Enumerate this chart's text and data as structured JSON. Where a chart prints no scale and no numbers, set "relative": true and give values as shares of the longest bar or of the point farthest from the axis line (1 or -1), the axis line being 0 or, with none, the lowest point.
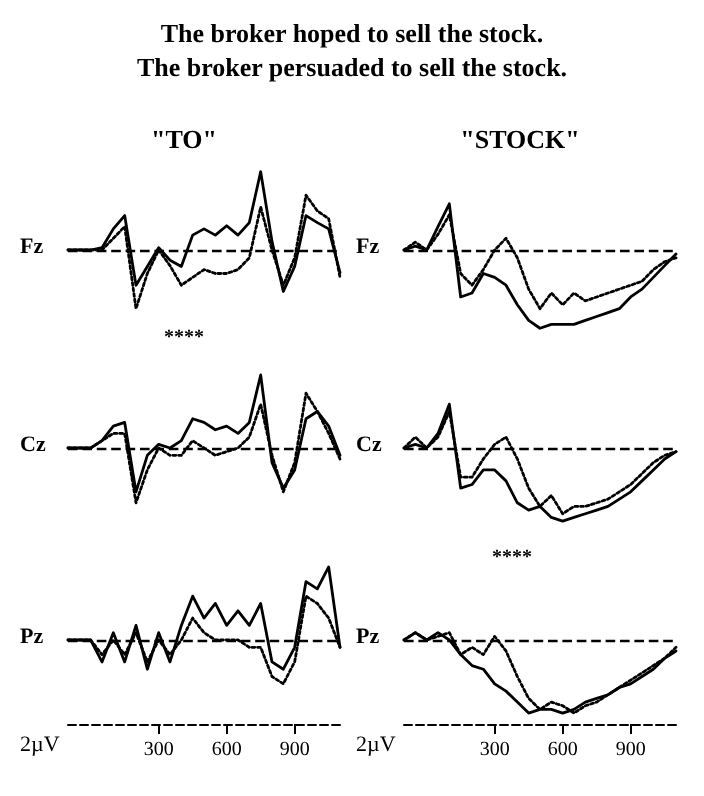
{
  "chart_data": [
    {
      "type": "other",
      "title": "The broker hoped to sell the stock.",
      "subtitle": "The broker persuaded to sell the stock."
    },
    {
      "type": "line",
      "title": "\"TO\"",
      "ylabel": "Fz",
      "relative": true,
      "xlim": [
        -100,
        1100
      ],
      "tick_labels": false,
      "x": [
        -100,
        -50,
        0,
        50,
        100,
        150,
        200,
        250,
        300,
        350,
        400,
        450,
        500,
        550,
        600,
        650,
        700,
        750,
        800,
        850,
        900,
        950,
        1000,
        1050,
        1100
      ],
      "annotations": [
        "****"
      ],
      "ref_lines": [
        {
          "axis": "y",
          "value": 0,
          "line_style": "dashed"
        }
      ],
      "series": [
        {
          "color": "#000000",
          "line_style": "solid",
          "values": [
            0,
            0,
            0,
            0.03,
            0.27,
            0.44,
            -0.45,
            -0.21,
            0.03,
            -0.13,
            -0.21,
            0.19,
            0.27,
            0.19,
            0.31,
            0.19,
            0.35,
            1,
            0.11,
            -0.53,
            -0.21,
            0.44,
            0.35,
            0.27,
            -0.29
          ]
        },
        {
          "color": "#000000",
          "line_style": "dotted",
          "values": [
            0,
            0,
            0,
            0,
            0.15,
            0.3,
            -0.75,
            -0.3,
            0,
            -0.2,
            -0.45,
            -0.35,
            -0.25,
            -0.3,
            -0.3,
            -0.25,
            -0.1,
            0.55,
            0,
            -0.45,
            -0.1,
            0.7,
            0.5,
            0.4,
            -0.35
          ]
        }
      ]
    },
    {
      "type": "line",
      "title": "\"STOCK\"",
      "ylabel": "Fz",
      "relative": true,
      "xlim": [
        -100,
        1100
      ],
      "tick_labels": false,
      "x": [
        -100,
        -50,
        0,
        50,
        100,
        150,
        200,
        250,
        300,
        350,
        400,
        450,
        500,
        550,
        600,
        650,
        700,
        750,
        800,
        850,
        900,
        950,
        1000,
        1050,
        1100
      ],
      "ref_lines": [
        {
          "axis": "y",
          "value": 0,
          "line_style": "dashed"
        }
      ],
      "series": [
        {
          "color": "#000000",
          "line_style": "solid",
          "values": [
            0,
            0.05,
            0,
            0.3,
            0.59,
            -0.6,
            -0.55,
            -0.3,
            -0.35,
            -0.45,
            -0.7,
            -0.9,
            -1,
            -0.95,
            -0.95,
            -0.95,
            -0.9,
            -0.85,
            -0.8,
            -0.75,
            -0.6,
            -0.5,
            -0.35,
            -0.2,
            -0.05
          ]
        },
        {
          "color": "#000000",
          "line_style": "dotted",
          "values": [
            0,
            0.1,
            0,
            0.2,
            0.45,
            -0.3,
            -0.45,
            -0.25,
            0,
            0.15,
            -0.1,
            -0.5,
            -0.75,
            -0.55,
            -0.7,
            -0.55,
            -0.65,
            -0.6,
            -0.55,
            -0.5,
            -0.45,
            -0.4,
            -0.25,
            -0.15,
            -0.1
          ]
        }
      ]
    },
    {
      "type": "line",
      "ylabel": "Cz",
      "relative": true,
      "xlim": [
        -100,
        1100
      ],
      "tick_labels": false,
      "x": [
        -100,
        -50,
        0,
        50,
        100,
        150,
        200,
        250,
        300,
        350,
        400,
        450,
        500,
        550,
        600,
        650,
        700,
        750,
        800,
        850,
        900,
        950,
        1000,
        1050,
        1100
      ],
      "ref_lines": [
        {
          "axis": "y",
          "value": 0,
          "line_style": "dashed"
        }
      ],
      "series": [
        {
          "color": "#000000",
          "line_style": "solid",
          "values": [
            0,
            0,
            0,
            0.1,
            0.3,
            0.35,
            -0.6,
            -0.1,
            0.05,
            0,
            0.1,
            0.4,
            0.35,
            0.25,
            0.3,
            0.2,
            0.35,
            1,
            -0.2,
            -0.55,
            -0.3,
            0.4,
            0.5,
            0.3,
            -0.1
          ]
        },
        {
          "color": "#000000",
          "line_style": "dotted",
          "values": [
            0,
            0,
            0,
            0.1,
            0.2,
            0.2,
            -0.75,
            -0.3,
            0,
            -0.1,
            -0.1,
            0.1,
            0,
            -0.1,
            -0.05,
            0,
            0.15,
            0.6,
            -0.1,
            -0.6,
            -0.2,
            0.75,
            0.5,
            0.2,
            -0.15
          ]
        }
      ]
    },
    {
      "type": "line",
      "ylabel": "Cz",
      "relative": true,
      "xlim": [
        -100,
        1100
      ],
      "tick_labels": false,
      "x": [
        -100,
        -50,
        0,
        50,
        100,
        150,
        200,
        250,
        300,
        350,
        400,
        450,
        500,
        550,
        600,
        650,
        700,
        750,
        800,
        850,
        900,
        950,
        1000,
        1050,
        1100
      ],
      "ref_lines": [
        {
          "axis": "y",
          "value": 0,
          "line_style": "dashed"
        }
      ],
      "series": [
        {
          "color": "#000000",
          "line_style": "solid",
          "values": [
            0,
            0.05,
            0,
            0.2,
            0.6,
            -0.55,
            -0.5,
            -0.3,
            -0.3,
            -0.45,
            -0.75,
            -0.85,
            -0.8,
            -0.95,
            -1,
            -0.95,
            -0.9,
            -0.85,
            -0.8,
            -0.7,
            -0.6,
            -0.45,
            -0.3,
            -0.15,
            -0.05
          ]
        },
        {
          "color": "#000000",
          "line_style": "dotted",
          "values": [
            0,
            0.15,
            0,
            0.15,
            0.5,
            -0.4,
            -0.4,
            -0.15,
            0.05,
            0.15,
            -0.15,
            -0.55,
            -0.8,
            -0.65,
            -0.9,
            -0.8,
            -0.8,
            -0.75,
            -0.7,
            -0.6,
            -0.5,
            -0.35,
            -0.2,
            -0.1,
            -0.05
          ]
        }
      ]
    },
    {
      "type": "line",
      "ylabel": "Pz",
      "relative": true,
      "xlim": [
        -100,
        1100
      ],
      "xticks": [
        300,
        600,
        900
      ],
      "tick_labels": "x",
      "x": [
        -100,
        -50,
        0,
        50,
        100,
        150,
        200,
        250,
        300,
        350,
        400,
        450,
        500,
        550,
        600,
        650,
        700,
        750,
        800,
        850,
        900,
        950,
        1000,
        1050,
        1100
      ],
      "annotations": [
        "2µV"
      ],
      "ref_lines": [
        {
          "axis": "y",
          "value": 0,
          "line_style": "dashed"
        }
      ],
      "series": [
        {
          "color": "#000000",
          "line_style": "solid",
          "values": [
            0,
            0,
            0,
            -0.3,
            0.1,
            -0.3,
            0.2,
            -0.4,
            0.1,
            -0.3,
            0.2,
            0.6,
            0.3,
            0.5,
            0.2,
            0.4,
            0.2,
            0.5,
            -0.3,
            -0.4,
            -0.1,
            0.8,
            0.7,
            1,
            -0.1
          ]
        },
        {
          "color": "#000000",
          "line_style": "dotted",
          "values": [
            0,
            0,
            0,
            -0.2,
            0,
            -0.2,
            0.1,
            -0.3,
            0,
            -0.2,
            0,
            0.3,
            0.1,
            0,
            0,
            0,
            -0.1,
            -0.1,
            -0.5,
            -0.6,
            -0.3,
            0.6,
            0.5,
            0.3,
            -0.1
          ]
        }
      ]
    },
    {
      "type": "line",
      "ylabel": "Pz",
      "relative": true,
      "xlim": [
        -100,
        1100
      ],
      "xticks": [
        300,
        600,
        900
      ],
      "tick_labels": "x",
      "x": [
        -100,
        -50,
        0,
        50,
        100,
        150,
        200,
        250,
        300,
        350,
        400,
        450,
        500,
        550,
        600,
        650,
        700,
        750,
        800,
        850,
        900,
        950,
        1000,
        1050,
        1100
      ],
      "annotations": [
        "2µV",
        "****"
      ],
      "ref_lines": [
        {
          "axis": "y",
          "value": 0,
          "line_style": "dashed"
        }
      ],
      "series": [
        {
          "color": "#000000",
          "line_style": "solid",
          "values": [
            0,
            0.1,
            0,
            0.1,
            0,
            -0.2,
            -0.35,
            -0.4,
            -0.6,
            -0.7,
            -0.85,
            -1,
            -0.95,
            -0.95,
            -1,
            -0.95,
            -0.85,
            -0.8,
            -0.75,
            -0.65,
            -0.6,
            -0.5,
            -0.4,
            -0.25,
            -0.15
          ]
        },
        {
          "color": "#000000",
          "line_style": "dotted",
          "values": [
            0,
            0.1,
            0,
            0.05,
            0.1,
            -0.2,
            -0.1,
            -0.2,
            0.05,
            -0.15,
            -0.5,
            -0.8,
            -0.95,
            -0.85,
            -0.9,
            -1,
            -0.9,
            -0.85,
            -0.75,
            -0.65,
            -0.55,
            -0.45,
            -0.35,
            -0.25,
            -0.1
          ]
        }
      ]
    }
  ]
}
